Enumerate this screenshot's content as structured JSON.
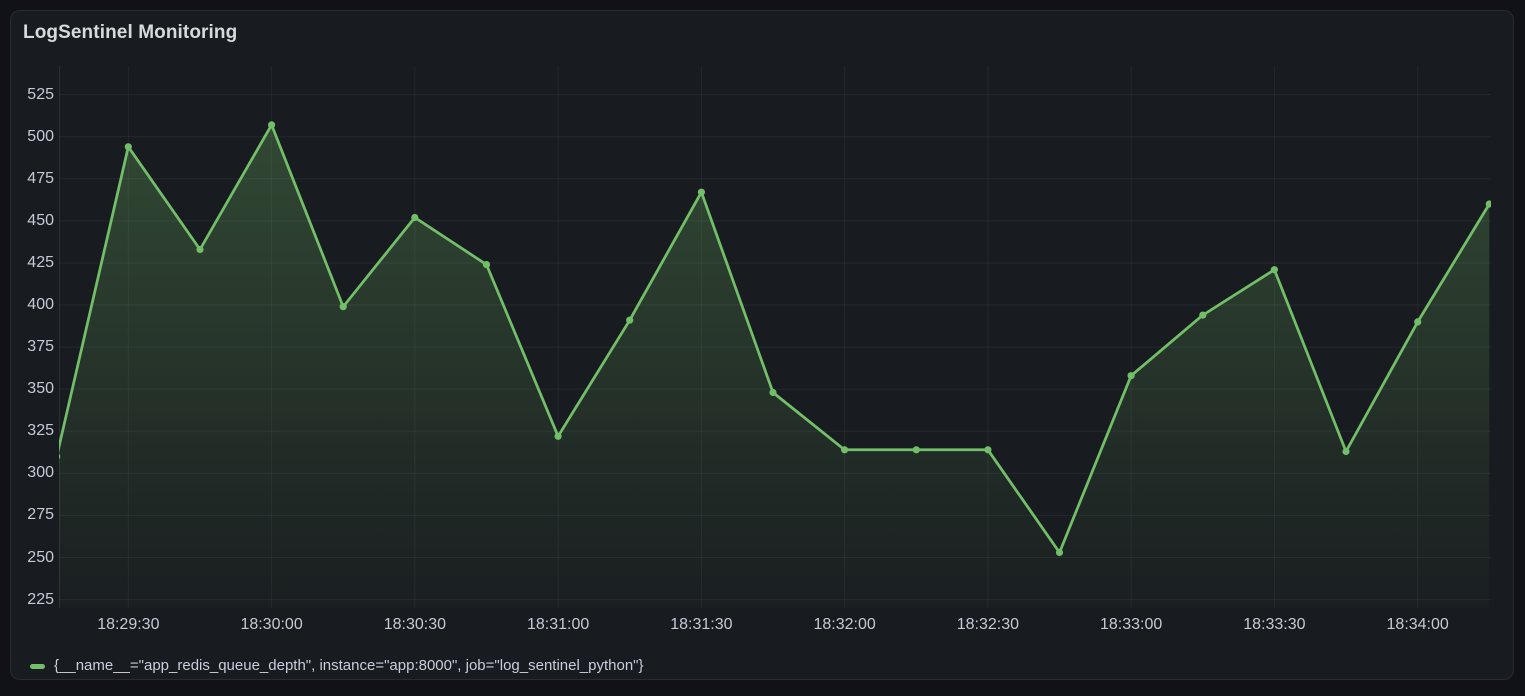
{
  "panel": {
    "title": "LogSentinel Monitoring"
  },
  "colors": {
    "background": "#111217",
    "panel_bg": "#181b1f",
    "panel_border": "#282b31",
    "grid": "rgba(204,204,220,0.07)",
    "axis_border": "rgba(204,204,220,0.12)",
    "axis_text": "#c8c9d6",
    "title_text": "#d8d9da",
    "series_line": "#73bf69",
    "fill_top_opacity": 0.31,
    "fill_bottom_opacity": 0.02,
    "legend_text": "#ccccdc"
  },
  "legend": {
    "label": "{__name__=\"app_redis_queue_depth\", instance=\"app:8000\", job=\"log_sentinel_python\"}"
  },
  "chart_data": {
    "type": "line",
    "title": "LogSentinel Monitoring",
    "xlabel": "",
    "ylabel": "",
    "grid": true,
    "legend_position": "bottom",
    "point_markers": true,
    "ylim": [
      220,
      542
    ],
    "y_ticks": [
      225,
      250,
      275,
      300,
      325,
      350,
      375,
      400,
      425,
      450,
      475,
      500,
      525
    ],
    "x": [
      "18:29:15",
      "18:29:30",
      "18:29:45",
      "18:30:00",
      "18:30:15",
      "18:30:30",
      "18:30:45",
      "18:31:00",
      "18:31:15",
      "18:31:30",
      "18:31:45",
      "18:32:00",
      "18:32:15",
      "18:32:30",
      "18:32:45",
      "18:33:00",
      "18:33:15",
      "18:33:30",
      "18:33:45",
      "18:34:00",
      "18:34:15"
    ],
    "x_tick_labels": [
      "18:29:30",
      "18:30:00",
      "18:30:30",
      "18:31:00",
      "18:31:30",
      "18:32:00",
      "18:32:30",
      "18:33:00",
      "18:33:30",
      "18:34:00"
    ],
    "x_tick_indices": [
      1,
      3,
      5,
      7,
      9,
      11,
      13,
      15,
      17,
      19
    ],
    "series": [
      {
        "name": "{__name__=\"app_redis_queue_depth\", instance=\"app:8000\", job=\"log_sentinel_python\"}",
        "values": [
          310,
          494,
          433,
          507,
          399,
          452,
          424,
          322,
          391,
          467,
          348,
          314,
          314,
          314,
          253,
          358,
          394,
          421,
          313,
          390,
          460
        ]
      }
    ]
  }
}
